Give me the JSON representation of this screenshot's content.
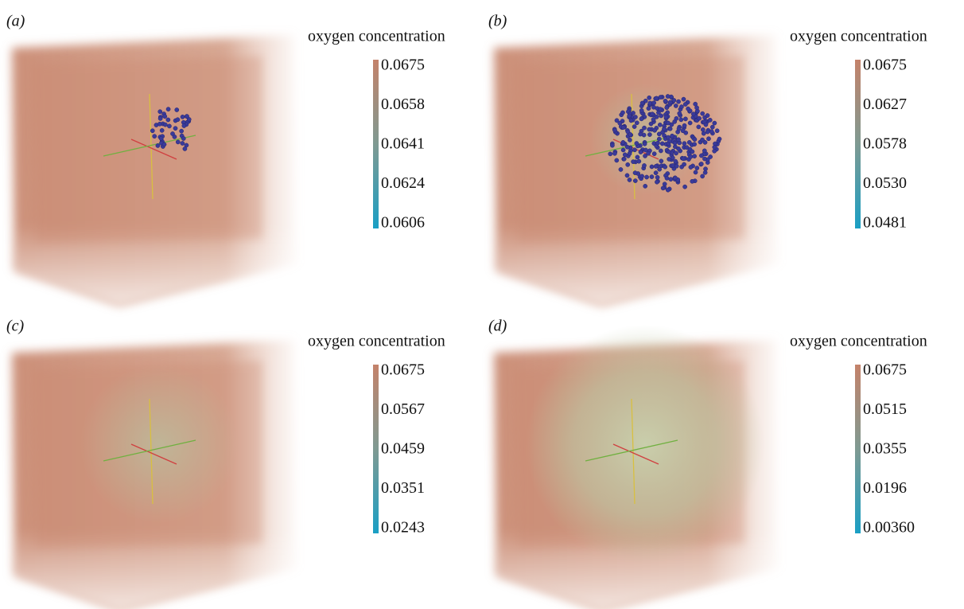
{
  "panels": [
    {
      "label": "(a)",
      "colorbar": {
        "title": "oxygen concentration",
        "ticks": [
          "0.0675",
          "0.0658",
          "0.0641",
          "0.0624",
          "0.0606"
        ]
      }
    },
    {
      "label": "(b)",
      "colorbar": {
        "title": "oxygen concentration",
        "ticks": [
          "0.0675",
          "0.0627",
          "0.0578",
          "0.0530",
          "0.0481"
        ]
      }
    },
    {
      "label": "(c)",
      "colorbar": {
        "title": "oxygen concentration",
        "ticks": [
          "0.0675",
          "0.0567",
          "0.0459",
          "0.0351",
          "0.0243"
        ]
      }
    },
    {
      "label": "(d)",
      "colorbar": {
        "title": "oxygen concentration",
        "ticks": [
          "0.0675",
          "0.0515",
          "0.0355",
          "0.0196",
          "0.00360"
        ]
      }
    }
  ]
}
